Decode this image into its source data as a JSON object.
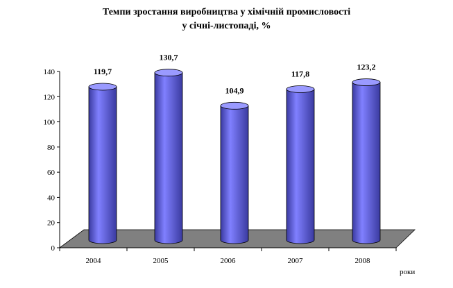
{
  "chart_data": {
    "type": "bar",
    "style": "3d-cylinder",
    "title_lines": [
      "Темпи зростання виробництва у хімічній промисловості",
      "у січні-листопаді, %"
    ],
    "categories": [
      "2004",
      "2005",
      "2006",
      "2007",
      "2008"
    ],
    "values": [
      119.7,
      130.7,
      104.9,
      117.8,
      123.2
    ],
    "data_labels": [
      "119,7",
      "130,7",
      "104,9",
      "117,8",
      "123,2"
    ],
    "yticks": [
      "0",
      "20",
      "40",
      "60",
      "80",
      "100",
      "120",
      "140"
    ],
    "ylim": [
      0,
      140
    ],
    "xlabel": "роки",
    "ylabel": "",
    "grid": false,
    "legend": "none",
    "colors": {
      "bar": "#8080ff",
      "bar_dark": "#3a3aa0",
      "bar_top": "#9a9aff",
      "floor": "#808080"
    }
  }
}
